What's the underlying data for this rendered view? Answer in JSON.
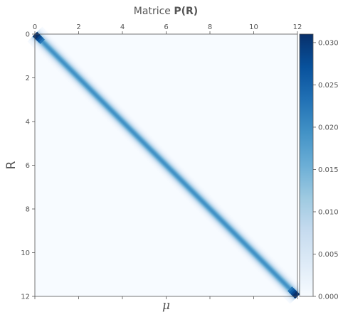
{
  "chart_data": {
    "type": "heatmap",
    "title_prefix": "Matrice",
    "title_bold": "P(R)",
    "xlabel": "μ",
    "ylabel": "R",
    "x_range": [
      0,
      12
    ],
    "y_range": [
      0,
      12
    ],
    "x_ticks": [
      "0",
      "2",
      "4",
      "6",
      "8",
      "10",
      "12"
    ],
    "y_ticks": [
      "0",
      "2",
      "4",
      "6",
      "8",
      "10",
      "12"
    ],
    "x_tick_values": [
      0,
      2,
      4,
      6,
      8,
      10,
      12
    ],
    "y_tick_values": [
      0,
      2,
      4,
      6,
      8,
      10,
      12
    ],
    "x_ticks_position": "top",
    "y_axis_inverted": true,
    "colormap": "Blues",
    "colormap_stops": [
      "#f7fbff",
      "#deebf7",
      "#c6dbef",
      "#9ecae1",
      "#6baed6",
      "#4292c6",
      "#2171b5",
      "#08519c",
      "#08306b"
    ],
    "colorbar_range": [
      0.0,
      0.031
    ],
    "colorbar_ticks": [
      "0.000",
      "0.005",
      "0.010",
      "0.015",
      "0.020",
      "0.025",
      "0.030"
    ],
    "colorbar_tick_values": [
      0.0,
      0.005,
      0.01,
      0.015,
      0.02,
      0.025,
      0.03
    ],
    "description_of_values": "Diagonal band along R = μ; value ≈ 0.020 along the band, rising to ≈ 0.031 at the corners (0,0) and (12,12); ≈ 0 elsewhere",
    "diagonal_peak": 0.02,
    "corner_peak": 0.031,
    "band_sigma": 0.16,
    "grid": false
  }
}
